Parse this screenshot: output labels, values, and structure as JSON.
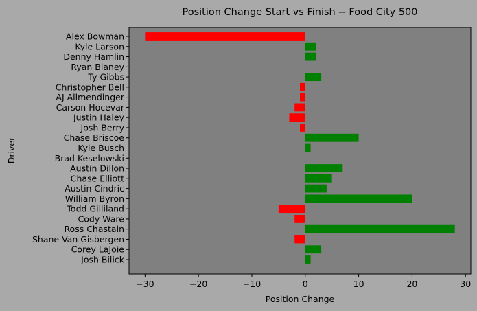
{
  "chart_data": {
    "type": "bar",
    "orientation": "horizontal",
    "title": "Position Change Start vs Finish -- Food City 500",
    "xlabel": "Position Change",
    "ylabel": "Driver",
    "xlim": [
      -33,
      31
    ],
    "xticks": [
      -30,
      -20,
      -10,
      0,
      10,
      20,
      30
    ],
    "xtick_labels": [
      "−30",
      "−20",
      "−10",
      "0",
      "10",
      "20",
      "30"
    ],
    "grid": false,
    "categories": [
      "Alex Bowman",
      "Kyle Larson",
      "Denny Hamlin",
      "Ryan Blaney",
      "Ty Gibbs",
      "Christopher Bell",
      "AJ Allmendinger",
      "Carson Hocevar",
      "Justin Haley",
      "Josh Berry",
      "Chase Briscoe",
      "Kyle Busch",
      "Brad Keselowski",
      "Austin Dillon",
      "Chase Elliott",
      "Austin Cindric",
      "William Byron",
      "Todd Gilliland",
      "Cody Ware",
      "Ross Chastain",
      "Shane Van Gisbergen",
      "Corey LaJoie",
      "Josh Bilick"
    ],
    "values": [
      -30,
      2,
      2,
      0,
      3,
      -1,
      -1,
      -2,
      -3,
      -1,
      10,
      1,
      0,
      7,
      5,
      4,
      20,
      -5,
      -2,
      28,
      -2,
      3,
      1
    ],
    "colors": {
      "positive": "#008000",
      "negative": "#ff0000"
    }
  },
  "style": {
    "figure_background": "#a9a9a9",
    "axes_background": "#808080"
  }
}
